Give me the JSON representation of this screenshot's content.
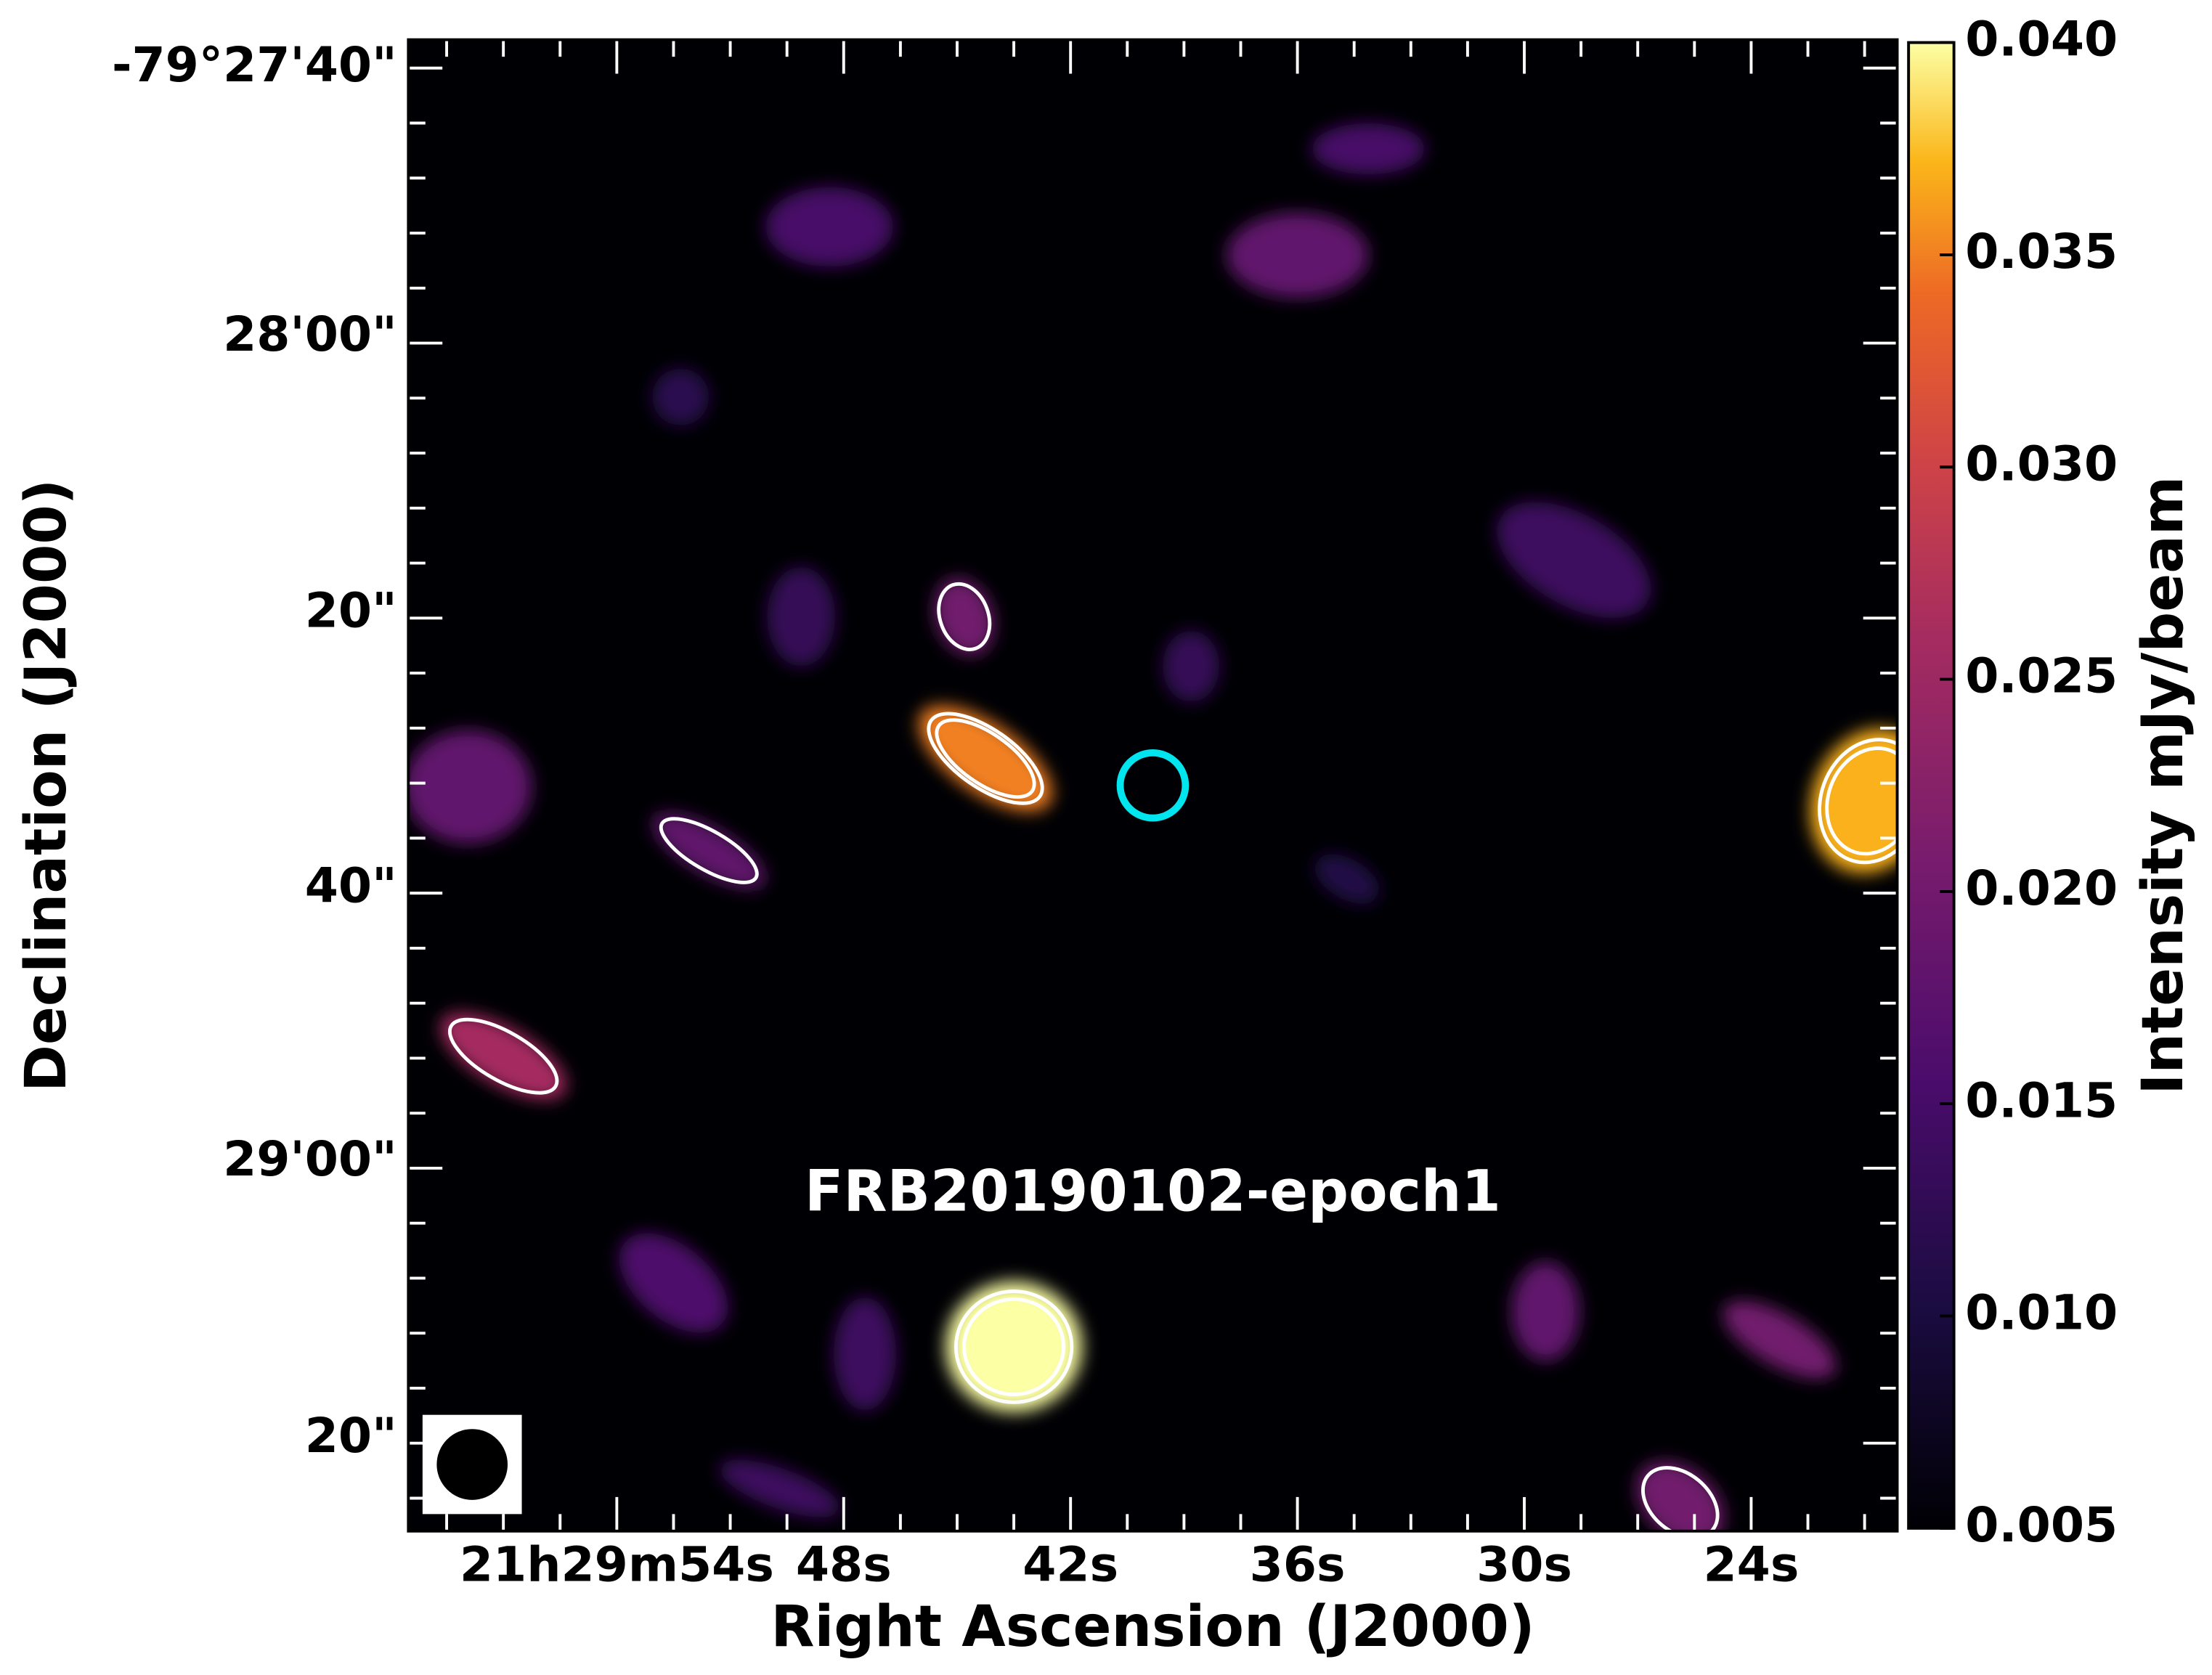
{
  "chart_data": {
    "type": "image",
    "annotation": "FRB20190102-epoch1",
    "xlabel": "Right Ascension (J2000)",
    "ylabel": "Declination (J2000)",
    "colorbar_label": "Intensity mJy/beam",
    "xticklabels": [
      "21h29m54s",
      "48s",
      "42s",
      "36s",
      "30s",
      "24s"
    ],
    "yticklabels": [
      "-79°27'40\"",
      "28'00\"",
      "20\"",
      "40\"",
      "29'00\"",
      "20\""
    ],
    "clim": [
      0.005,
      0.04
    ],
    "cticks": [
      {
        "value": 0.04,
        "label": "0.040"
      },
      {
        "value": 0.035,
        "label": "0.035"
      },
      {
        "value": 0.03,
        "label": "0.030"
      },
      {
        "value": 0.025,
        "label": "0.025"
      },
      {
        "value": 0.02,
        "label": "0.020"
      },
      {
        "value": 0.015,
        "label": "0.015"
      },
      {
        "value": 0.01,
        "label": "0.010"
      },
      {
        "value": 0.005,
        "label": "0.005"
      }
    ],
    "sources": [
      0.04,
      0.035,
      0.037,
      0.026,
      0.02,
      0.018,
      0.018,
      0.015,
      0.015,
      0.014,
      0.018,
      0.016,
      0.02,
      0.018,
      0.02,
      0.014,
      0.013,
      0.013,
      0.012,
      0.011,
      0.014
    ]
  }
}
